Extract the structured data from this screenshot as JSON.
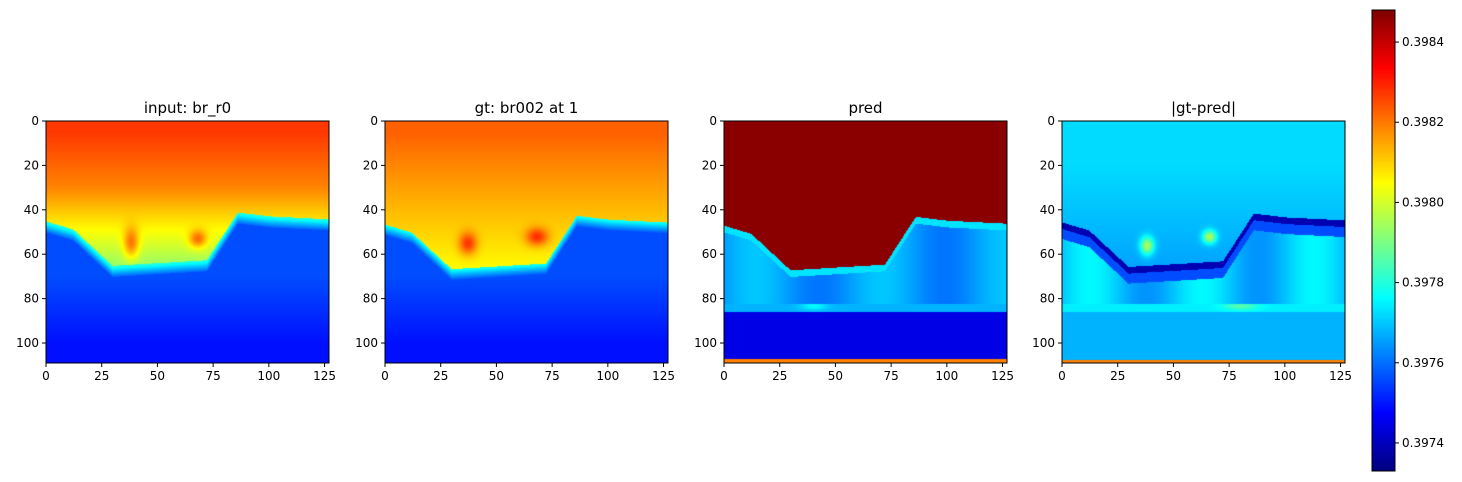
{
  "chart_data": {
    "type": "heatmap",
    "colormap": "jet",
    "panels": [
      {
        "title": "input: br_r0",
        "xlim": [
          0,
          127
        ],
        "ylim": [
          109,
          0
        ],
        "xticks": [
          "0",
          "25",
          "50",
          "75",
          "100",
          "125"
        ],
        "yticks": [
          "0",
          "20",
          "40",
          "60",
          "80",
          "100"
        ],
        "field": "input"
      },
      {
        "title": "gt: br002 at 1",
        "xlim": [
          0,
          127
        ],
        "ylim": [
          109,
          0
        ],
        "xticks": [
          "0",
          "25",
          "50",
          "75",
          "100",
          "125"
        ],
        "yticks": [
          "0",
          "20",
          "40",
          "60",
          "80",
          "100"
        ],
        "field": "gt"
      },
      {
        "title": "pred",
        "xlim": [
          0,
          127
        ],
        "ylim": [
          109,
          0
        ],
        "xticks": [
          "0",
          "25",
          "50",
          "75",
          "100",
          "125"
        ],
        "yticks": [
          "0",
          "20",
          "40",
          "60",
          "80",
          "100"
        ],
        "field": "pred"
      },
      {
        "title": "|gt-pred|",
        "xlim": [
          0,
          127
        ],
        "ylim": [
          109,
          0
        ],
        "xticks": [
          "0",
          "25",
          "50",
          "75",
          "100",
          "125"
        ],
        "yticks": [
          "0",
          "20",
          "40",
          "60",
          "80",
          "100"
        ],
        "field": "diff"
      }
    ],
    "colorbar": {
      "vmin": 0.39733,
      "vmax": 0.39848,
      "ticks": [
        "0.3974",
        "0.3976",
        "0.3978",
        "0.3980",
        "0.3982",
        "0.3984"
      ],
      "tick_values": [
        0.3974,
        0.3976,
        0.3978,
        0.398,
        0.3982,
        0.3984
      ]
    }
  }
}
